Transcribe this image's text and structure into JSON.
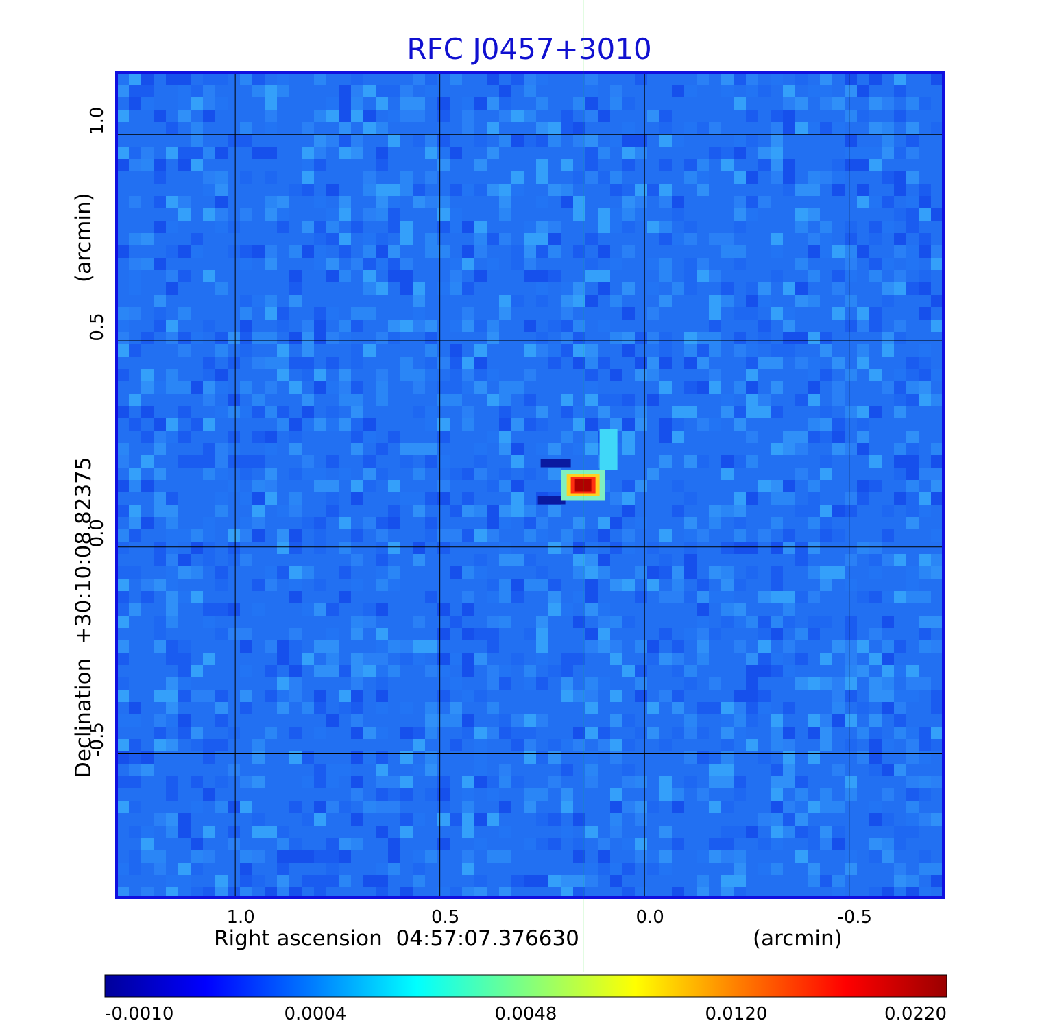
{
  "chart_data": {
    "type": "heatmap",
    "title": "RFC J0457+3010",
    "xlabel": "Right ascension  04:57:07.376630",
    "xunit": "(arcmin)",
    "ylabel": "Declination  +30:10:08.82375",
    "yunit": "(arcmin)",
    "xlim": [
      1.29,
      -0.73
    ],
    "ylim": [
      -0.85,
      1.15
    ],
    "x_ticks": [
      {
        "value": 1.0,
        "label": "1.0"
      },
      {
        "value": 0.5,
        "label": "0.5"
      },
      {
        "value": 0.0,
        "label": "0.0"
      },
      {
        "value": -0.5,
        "label": "-0.5"
      }
    ],
    "y_ticks": [
      {
        "value": 1.0,
        "label": "1.0"
      },
      {
        "value": 0.5,
        "label": "0.5"
      },
      {
        "value": 0.0,
        "label": "0.0"
      },
      {
        "value": -0.5,
        "label": "-0.5"
      }
    ],
    "grid": true,
    "crosshair": {
      "x": 0.15,
      "y": 0.15,
      "color": "#00e000"
    },
    "peak": {
      "x": 0.15,
      "y": 0.15,
      "value": 0.022
    },
    "background_level": 0.0004,
    "colormap": "jet",
    "colorbar_ticks": [
      "-0.0010",
      "0.0004",
      "0.0048",
      "0.0120",
      "0.0220"
    ],
    "colors": {
      "frame": "#1010e0",
      "title": "#1010d0",
      "grid": "#000000"
    }
  }
}
